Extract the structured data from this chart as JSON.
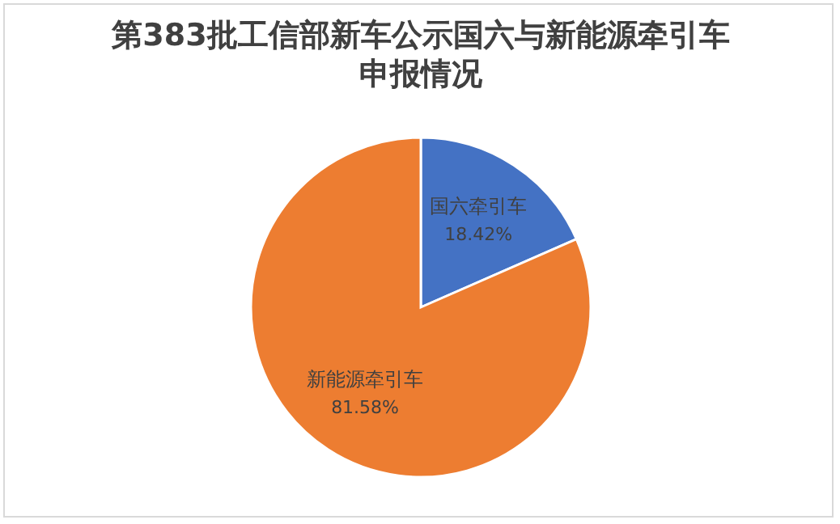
{
  "chart_data": {
    "type": "pie",
    "title": "第383批工信部新车公示国六与新能源牵引车申报情况",
    "categories": [
      "国六牵引车",
      "新能源牵引车"
    ],
    "values": [
      18.42,
      81.58
    ],
    "colors": [
      "#4472c4",
      "#ed7d31"
    ],
    "value_labels": [
      "18.42%",
      "81.58%"
    ]
  }
}
